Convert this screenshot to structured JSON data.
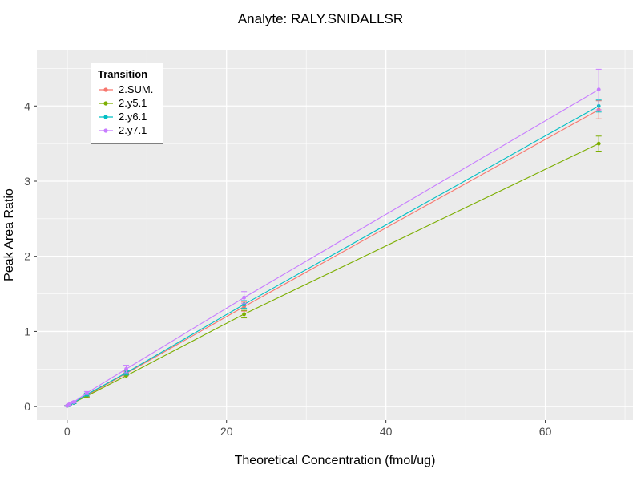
{
  "chart_data": {
    "type": "line",
    "title": "Analyte: RALY.SNIDALLSR",
    "xlabel": "Theoretical Concentration (fmol/ug)",
    "ylabel": "Peak Area Ratio",
    "legend": {
      "title": "Transition",
      "position": "top-left-inside"
    },
    "x": [
      0,
      0.27,
      0.82,
      2.47,
      7.41,
      22.2,
      66.7
    ],
    "xticks": [
      0,
      20,
      40,
      60
    ],
    "yticks": [
      0,
      1,
      2,
      3,
      4
    ],
    "xlim": [
      -3.8,
      71
    ],
    "ylim": [
      -0.18,
      4.75
    ],
    "grid": true,
    "panel_bg": "#EBEBEB",
    "grid_color": "#FFFFFF",
    "tick_label_color": "#4D4D4D",
    "tick_mark_color": "#333333",
    "series": [
      {
        "name": "2.SUM.",
        "color": "#F8766D",
        "values": [
          0.01,
          0.02,
          0.05,
          0.15,
          0.44,
          1.33,
          3.95
        ],
        "errors": [
          0.005,
          0.005,
          0.01,
          0.02,
          0.03,
          0.06,
          0.12
        ]
      },
      {
        "name": "2.y5.1",
        "color": "#7CAE00",
        "values": [
          0.01,
          0.02,
          0.05,
          0.14,
          0.41,
          1.23,
          3.5
        ],
        "errors": [
          0.005,
          0.005,
          0.01,
          0.02,
          0.03,
          0.05,
          0.1
        ]
      },
      {
        "name": "2.y6.1",
        "color": "#00BFC4",
        "values": [
          0.01,
          0.02,
          0.05,
          0.16,
          0.45,
          1.36,
          4.0
        ],
        "errors": [
          0.005,
          0.005,
          0.01,
          0.02,
          0.03,
          0.05,
          0.08
        ]
      },
      {
        "name": "2.y7.1",
        "color": "#C77CFF",
        "values": [
          0.01,
          0.03,
          0.06,
          0.18,
          0.5,
          1.45,
          4.22
        ],
        "errors": [
          0.005,
          0.01,
          0.01,
          0.02,
          0.05,
          0.08,
          0.27
        ]
      }
    ]
  }
}
